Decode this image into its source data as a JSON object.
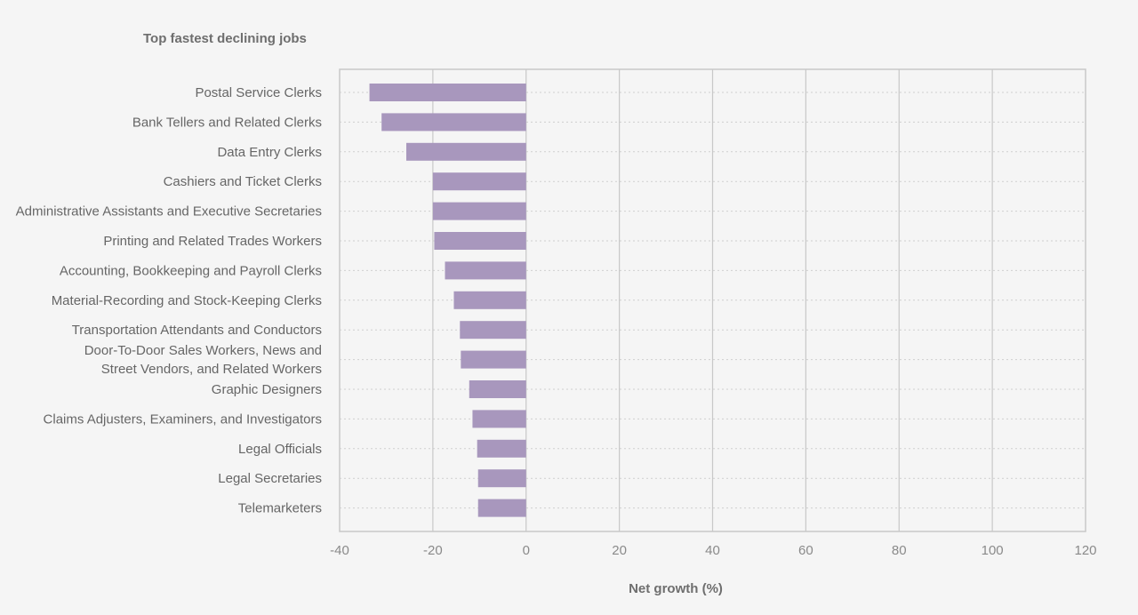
{
  "chart_data": {
    "type": "bar",
    "orientation": "horizontal",
    "title": "Top fastest declining jobs",
    "xlabel": "Net growth (%)",
    "ylabel": "",
    "xlim": [
      -40,
      120
    ],
    "xticks": [
      -40,
      -20,
      0,
      20,
      40,
      60,
      80,
      100,
      120
    ],
    "grid": true,
    "bar_color": "#a897bd",
    "categories": [
      [
        "Postal Service Clerks"
      ],
      [
        "Bank Tellers and Related Clerks"
      ],
      [
        "Data Entry Clerks"
      ],
      [
        "Cashiers and Ticket Clerks"
      ],
      [
        "Administrative Assistants and Executive Secretaries"
      ],
      [
        "Printing and Related Trades Workers"
      ],
      [
        "Accounting, Bookkeeping and Payroll Clerks"
      ],
      [
        "Material-Recording and Stock-Keeping Clerks"
      ],
      [
        "Transportation Attendants and Conductors"
      ],
      [
        "Door-To-Door Sales Workers, News and",
        "Street Vendors, and Related Workers"
      ],
      [
        "Graphic Designers"
      ],
      [
        "Claims Adjusters, Examiners, and Investigators"
      ],
      [
        "Legal Officials"
      ],
      [
        "Legal Secretaries"
      ],
      [
        "Telemarketers"
      ]
    ],
    "values": [
      -33.6,
      -31,
      -25.7,
      -20,
      -20,
      -19.7,
      -17.4,
      -15.5,
      -14.2,
      -14,
      -12.2,
      -11.5,
      -10.5,
      -10.3,
      -10.3
    ]
  }
}
